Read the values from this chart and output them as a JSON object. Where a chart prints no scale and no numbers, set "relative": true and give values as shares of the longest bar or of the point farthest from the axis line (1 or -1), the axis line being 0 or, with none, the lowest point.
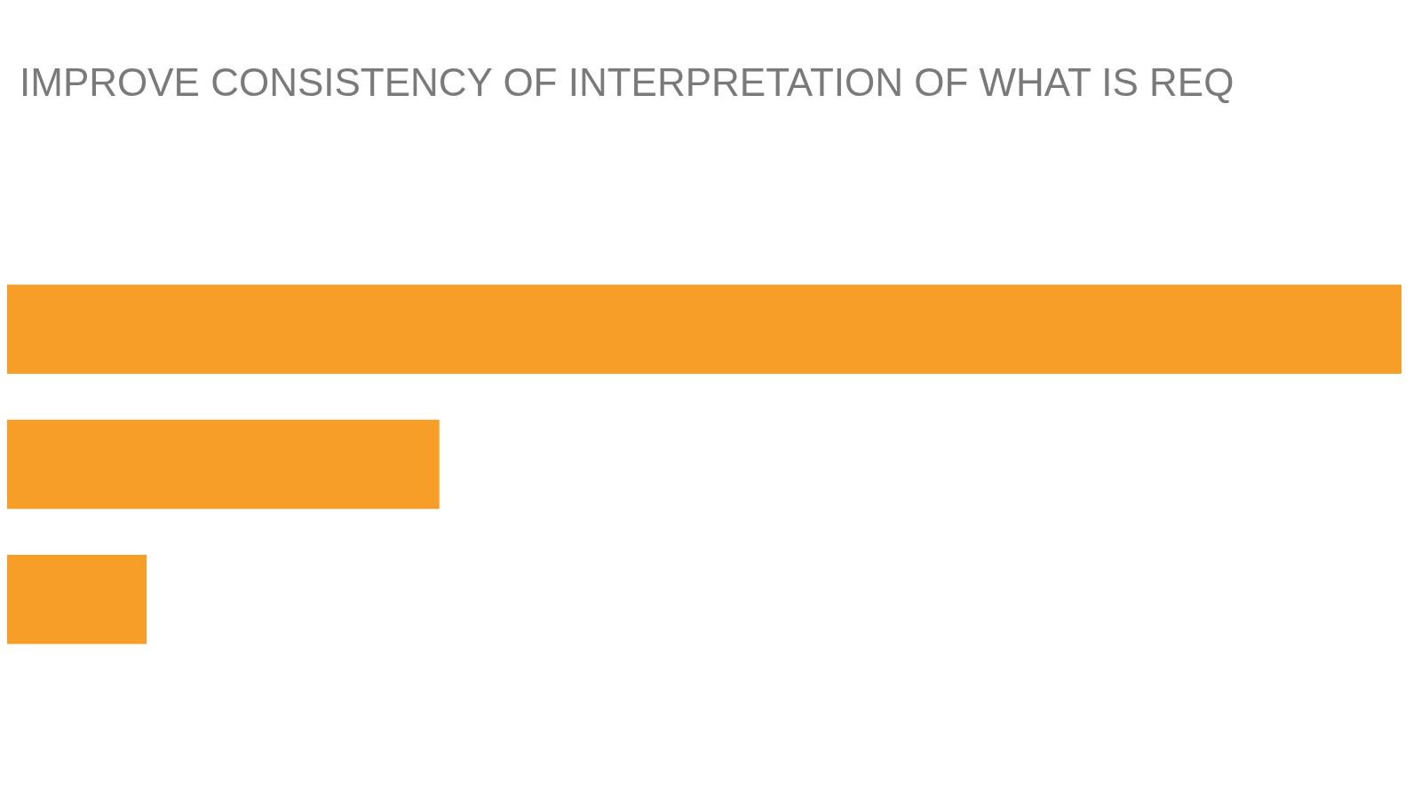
{
  "chart_data": {
    "type": "bar",
    "orientation": "horizontal",
    "relative": true,
    "title": "IMPROVE CONSISTENCY OF INTERPRETATION OF WHAT IS REQ",
    "categories": [
      null,
      null,
      null
    ],
    "values": [
      1,
      0.31,
      0.1
    ],
    "color": "#f79e28"
  }
}
